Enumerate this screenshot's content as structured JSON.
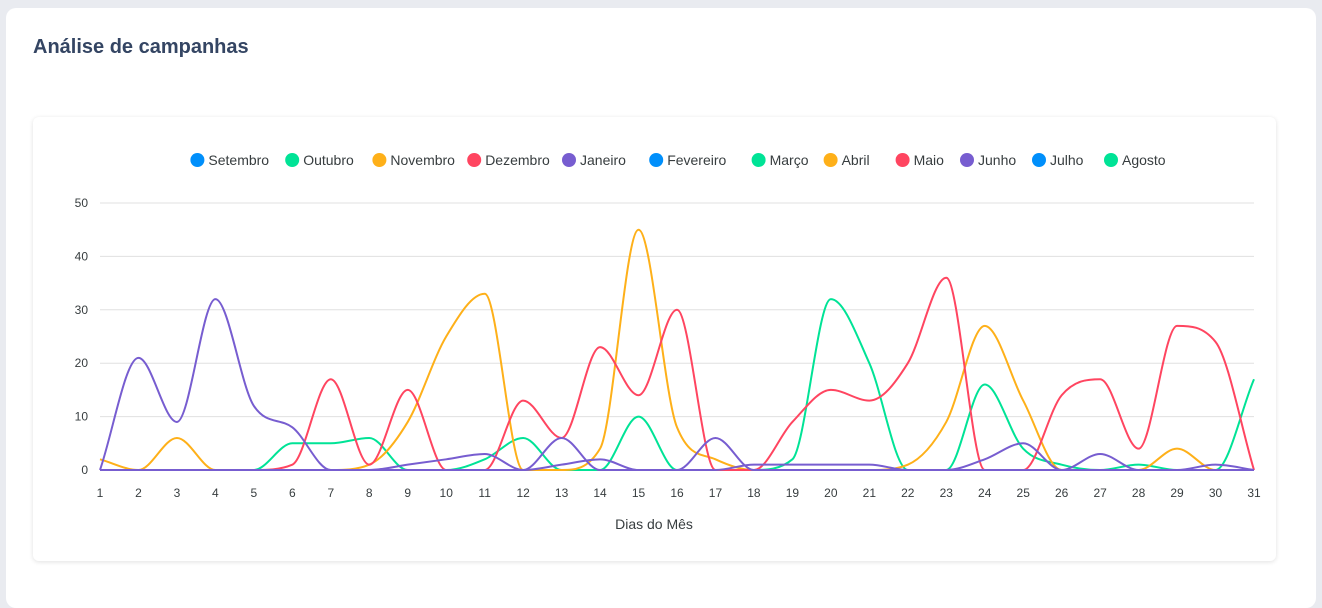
{
  "page": {
    "title": "Análise de campanhas"
  },
  "chart_data": {
    "type": "line",
    "title": "",
    "xlabel": "Dias do Mês",
    "ylabel": "",
    "ylim": [
      0,
      50
    ],
    "yticks": [
      0,
      10,
      20,
      30,
      40,
      50
    ],
    "x": [
      1,
      2,
      3,
      4,
      5,
      6,
      7,
      8,
      9,
      10,
      11,
      12,
      13,
      14,
      15,
      16,
      17,
      18,
      19,
      20,
      21,
      22,
      23,
      24,
      25,
      26,
      27,
      28,
      29,
      30,
      31
    ],
    "grid": "horizontal",
    "legend": "top-center",
    "series": [
      {
        "name": "Setembro",
        "color": "#008ffb",
        "values": [
          0,
          0,
          0,
          0,
          0,
          0,
          0,
          0,
          0,
          0,
          0,
          0,
          0,
          0,
          0,
          0,
          0,
          0,
          0,
          0,
          0,
          0,
          0,
          0,
          0,
          0,
          0,
          0,
          0,
          0,
          0
        ]
      },
      {
        "name": "Outubro",
        "color": "#00e396",
        "values": [
          0,
          0,
          0,
          0,
          0,
          5,
          5,
          6,
          0,
          0,
          2,
          6,
          0,
          0,
          10,
          0,
          0,
          0,
          2,
          32,
          20,
          0,
          0,
          16,
          4,
          1,
          0,
          1,
          0,
          0,
          17
        ]
      },
      {
        "name": "Novembro",
        "color": "#feb019",
        "values": [
          2,
          0,
          6,
          0,
          0,
          0,
          0,
          1,
          9,
          25,
          33,
          0,
          0,
          4,
          45,
          8,
          2,
          0,
          0,
          0,
          0,
          1,
          9,
          27,
          13,
          0,
          0,
          0,
          4,
          0,
          0
        ]
      },
      {
        "name": "Dezembro",
        "color": "#ff4560",
        "values": [
          0,
          0,
          0,
          0,
          0,
          1,
          17,
          1,
          15,
          0,
          0,
          13,
          6,
          23,
          14,
          30,
          0,
          0,
          9,
          15,
          13,
          20,
          36,
          0,
          0,
          14,
          17,
          4,
          27,
          24,
          0
        ]
      },
      {
        "name": "Janeiro",
        "color": "#775dd0",
        "values": [
          0,
          21,
          9,
          32,
          12,
          8,
          0,
          0,
          1,
          2,
          3,
          0,
          6,
          0,
          0,
          0,
          6,
          0,
          0,
          0,
          0,
          0,
          0,
          0,
          0,
          0,
          0,
          0,
          0,
          0,
          0
        ]
      },
      {
        "name": "Fevereiro",
        "color": "#008ffb",
        "values": [
          0,
          0,
          0,
          0,
          0,
          0,
          0,
          0,
          0,
          0,
          0,
          0,
          0,
          0,
          0,
          0,
          0,
          0,
          0,
          0,
          0,
          0,
          0,
          0,
          0,
          0,
          0,
          0,
          0,
          0,
          0
        ]
      },
      {
        "name": "Março",
        "color": "#00e396",
        "values": [
          0,
          0,
          0,
          0,
          0,
          0,
          0,
          0,
          0,
          0,
          0,
          0,
          0,
          0,
          0,
          0,
          0,
          0,
          0,
          0,
          0,
          0,
          0,
          0,
          0,
          0,
          0,
          0,
          0,
          0,
          0
        ]
      },
      {
        "name": "Abril",
        "color": "#feb019",
        "values": [
          0,
          0,
          0,
          0,
          0,
          0,
          0,
          0,
          0,
          0,
          0,
          0,
          0,
          0,
          0,
          0,
          0,
          0,
          0,
          0,
          0,
          0,
          0,
          0,
          0,
          0,
          0,
          0,
          0,
          0,
          0
        ]
      },
      {
        "name": "Maio",
        "color": "#ff4560",
        "values": [
          0,
          0,
          0,
          0,
          0,
          0,
          0,
          0,
          0,
          0,
          0,
          0,
          0,
          0,
          0,
          0,
          0,
          0,
          0,
          0,
          0,
          0,
          0,
          0,
          0,
          0,
          0,
          0,
          0,
          0,
          0
        ]
      },
      {
        "name": "Junho",
        "color": "#775dd0",
        "values": [
          0,
          0,
          0,
          0,
          0,
          0,
          0,
          0,
          0,
          0,
          0,
          0,
          1,
          2,
          0,
          0,
          0,
          1,
          1,
          1,
          1,
          0,
          0,
          2,
          5,
          0,
          3,
          0,
          0,
          1,
          0
        ]
      },
      {
        "name": "Julho",
        "color": "#008ffb",
        "values": [
          0,
          0,
          0,
          0,
          0,
          0,
          0,
          0,
          0,
          0,
          0,
          0,
          0,
          0,
          0,
          0,
          0,
          0,
          0,
          0,
          0,
          0,
          0,
          0,
          0,
          0,
          0,
          0,
          0,
          0,
          0
        ]
      },
      {
        "name": "Agosto",
        "color": "#00e396",
        "values": [
          0,
          0,
          0,
          0,
          0,
          0,
          0,
          0,
          0,
          0,
          0,
          0,
          0,
          0,
          0,
          0,
          0,
          0,
          0,
          0,
          0,
          0,
          0,
          0,
          0,
          0,
          0,
          0,
          0,
          0,
          0
        ]
      }
    ]
  }
}
